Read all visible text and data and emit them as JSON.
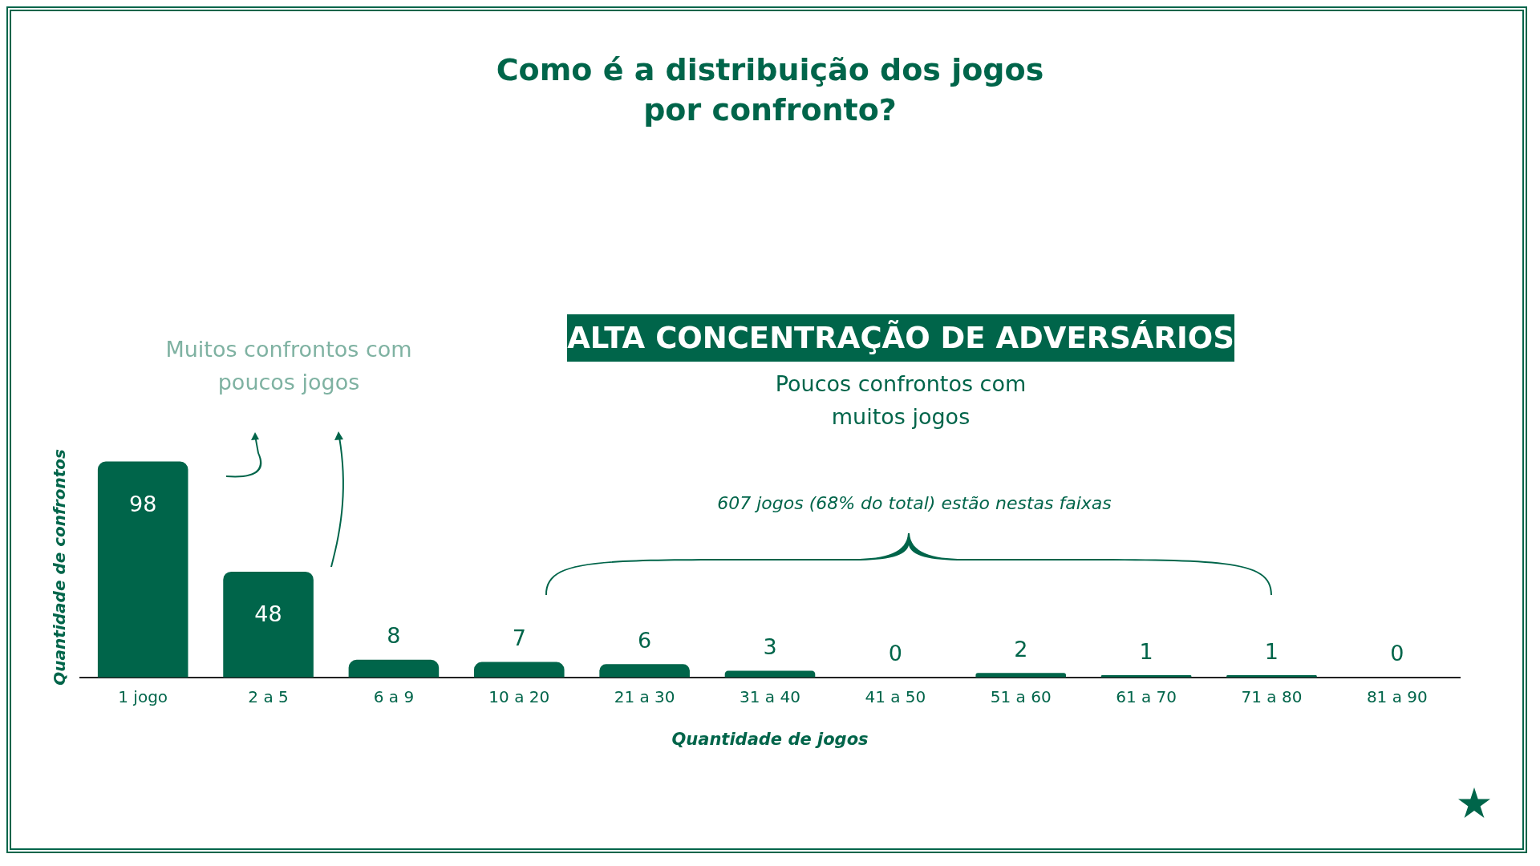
{
  "chart_data": {
    "type": "bar",
    "title": "Como é a distribuição dos jogos por confronto?",
    "categories": [
      "1 jogo",
      "2 a 5",
      "6 a 9",
      "10 a 20",
      "21 a 30",
      "31 a 40",
      "41 a 50",
      "51 a 60",
      "61 a 70",
      "71 a 80",
      "81 a 90"
    ],
    "values": [
      98,
      48,
      8,
      7,
      6,
      3,
      0,
      2,
      1,
      1,
      0
    ],
    "color": "#00654a",
    "data_labels": true,
    "tick_labels": "x",
    "grid": false,
    "legend": false,
    "xlabel": "Quantidade de jogos",
    "ylabel": "Quantidade de confrontos",
    "annotations": [
      "Muitos confrontos com poucos jogos",
      "ALTA CONCENTRAÇÃO DE ADVERSÁRIOS",
      "Poucos confrontos com muitos jogos",
      "607 jogos (68% do total) estão nestas faixas"
    ]
  }
}
